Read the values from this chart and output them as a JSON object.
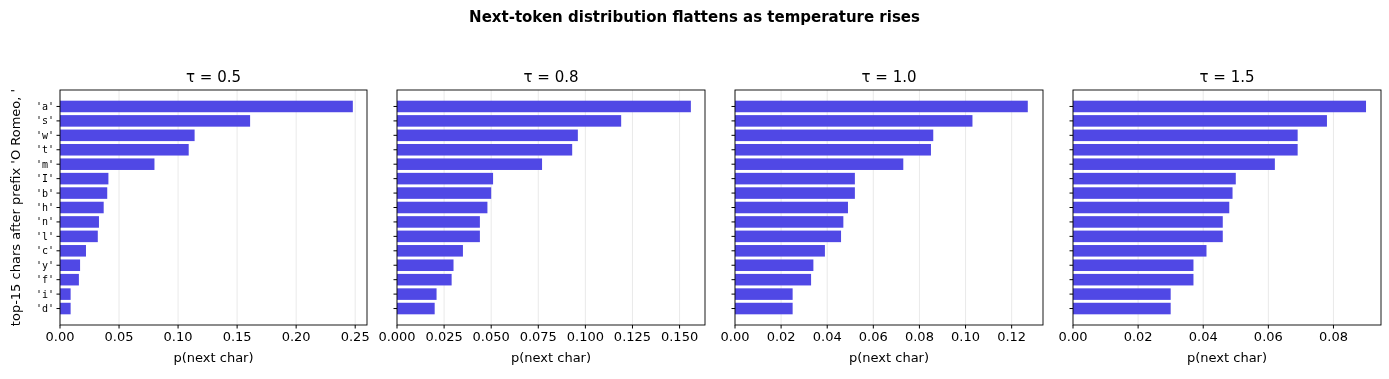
{
  "chart_data": [
    {
      "type": "bar",
      "orientation": "horizontal",
      "annotations": [
        "Next-token distribution flattens as temperature rises"
      ],
      "title": "τ = 0.5",
      "xlabel": "p(next char)",
      "ylabel": "top-15 chars after prefix 'O Romeo, '",
      "categories": [
        "'a'",
        "'s'",
        "'w'",
        "'t'",
        "'m'",
        "'I'",
        "'b'",
        "'h'",
        "'n'",
        "'l'",
        "'c'",
        "'y'",
        "'f'",
        "'i'",
        "'d'"
      ],
      "values": [
        0.248,
        0.161,
        0.114,
        0.109,
        0.08,
        0.041,
        0.04,
        0.037,
        0.033,
        0.032,
        0.022,
        0.017,
        0.016,
        0.009,
        0.009
      ],
      "color": "#5048e5",
      "xlim": [
        0,
        0.26
      ],
      "xticks": [
        {
          "value": 0,
          "label": "0.00"
        },
        0.05,
        {
          "value": 0.1,
          "label": "0.10"
        },
        0.15,
        {
          "value": 0.2,
          "label": "0.20"
        },
        0.25
      ],
      "grid": "x"
    },
    {
      "type": "bar",
      "orientation": "horizontal",
      "title": "τ = 0.8",
      "xlabel": "p(next char)",
      "categories": [
        null,
        null,
        null,
        null,
        null,
        null,
        null,
        null,
        null,
        null,
        null,
        null,
        null,
        null,
        null
      ],
      "values": [
        0.156,
        0.119,
        0.096,
        0.093,
        0.077,
        0.051,
        0.05,
        0.048,
        0.044,
        0.044,
        0.035,
        0.03,
        0.029,
        0.021,
        0.02
      ],
      "color": "#5048e5",
      "xlim": [
        0,
        0.1635
      ],
      "xticks": [
        {
          "value": 0,
          "label": "0.000"
        },
        0.025,
        {
          "value": 0.05,
          "label": "0.050"
        },
        0.075,
        {
          "value": 0.1,
          "label": "0.100"
        },
        0.125,
        {
          "value": 0.15,
          "label": "0.150"
        }
      ],
      "grid": "x",
      "tick_labels": "x"
    },
    {
      "type": "bar",
      "orientation": "horizontal",
      "title": "τ = 1.0",
      "xlabel": "p(next char)",
      "categories": [
        null,
        null,
        null,
        null,
        null,
        null,
        null,
        null,
        null,
        null,
        null,
        null,
        null,
        null,
        null
      ],
      "values": [
        0.127,
        0.103,
        0.086,
        0.085,
        0.073,
        0.052,
        0.052,
        0.049,
        0.047,
        0.046,
        0.039,
        0.034,
        0.033,
        0.025,
        0.025
      ],
      "color": "#5048e5",
      "xlim": [
        0,
        0.1336
      ],
      "xticks": [
        {
          "value": 0,
          "label": "0.00"
        },
        0.02,
        0.04,
        0.06,
        0.08,
        {
          "value": 0.1,
          "label": "0.10"
        },
        0.12
      ],
      "grid": "x",
      "tick_labels": "x"
    },
    {
      "type": "bar",
      "orientation": "horizontal",
      "title": "τ = 1.5",
      "xlabel": "p(next char)",
      "categories": [
        null,
        null,
        null,
        null,
        null,
        null,
        null,
        null,
        null,
        null,
        null,
        null,
        null,
        null,
        null
      ],
      "values": [
        0.09,
        0.078,
        0.069,
        0.069,
        0.062,
        0.05,
        0.049,
        0.048,
        0.046,
        0.046,
        0.041,
        0.037,
        0.037,
        0.03,
        0.03
      ],
      "color": "#5048e5",
      "xlim": [
        0,
        0.0946
      ],
      "xticks": [
        {
          "value": 0,
          "label": "0.00"
        },
        0.02,
        0.04,
        0.06,
        0.08
      ],
      "grid": "x",
      "tick_labels": "x"
    }
  ]
}
